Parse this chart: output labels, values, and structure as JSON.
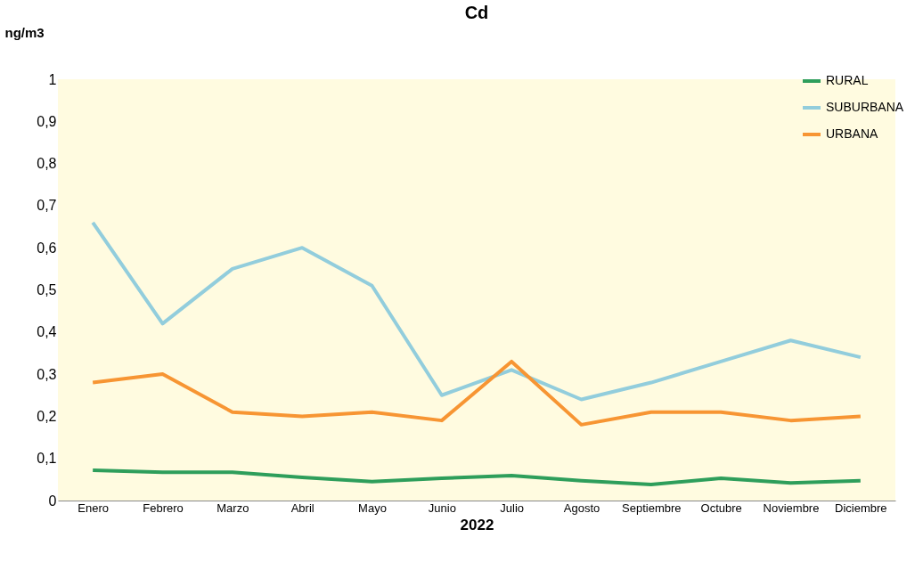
{
  "chart_data": {
    "type": "line",
    "title": "Cd",
    "xlabel": "2022",
    "ylabel": "ng/m3",
    "categories": [
      "Enero",
      "Febrero",
      "Marzo",
      "Abril",
      "Mayo",
      "Junio",
      "Julio",
      "Agosto",
      "Septiembre",
      "Octubre",
      "Noviembre",
      "Diciembre"
    ],
    "series": [
      {
        "name": "RURAL",
        "color": "#2e9e5b",
        "values": [
          0.072,
          0.067,
          0.067,
          0.055,
          0.045,
          0.053,
          0.059,
          0.047,
          0.038,
          0.053,
          0.042,
          0.047
        ]
      },
      {
        "name": "SUBURBANA",
        "color": "#92cddc",
        "values": [
          0.66,
          0.42,
          0.55,
          0.6,
          0.51,
          0.25,
          0.31,
          0.24,
          0.28,
          0.33,
          0.38,
          0.34
        ]
      },
      {
        "name": "URBANA",
        "color": "#f79533",
        "values": [
          0.28,
          0.3,
          0.21,
          0.2,
          0.21,
          0.19,
          0.33,
          0.18,
          0.21,
          0.21,
          0.19,
          0.2
        ]
      }
    ],
    "ylim": [
      0,
      1
    ],
    "yticks": [
      0,
      {
        "value": 0.1,
        "label": "0,1"
      },
      {
        "value": 0.2,
        "label": "0,2"
      },
      {
        "value": 0.3,
        "label": "0,3"
      },
      {
        "value": 0.4,
        "label": "0,4"
      },
      {
        "value": 0.5,
        "label": "0,5"
      },
      {
        "value": 0.6,
        "label": "0,6"
      },
      {
        "value": 0.7,
        "label": "0,7"
      },
      {
        "value": 0.8,
        "label": "0,8"
      },
      {
        "value": 0.9,
        "label": "0,9"
      },
      1
    ],
    "grid": false,
    "legend": "top right",
    "marker": "none",
    "line_style": "solid"
  }
}
